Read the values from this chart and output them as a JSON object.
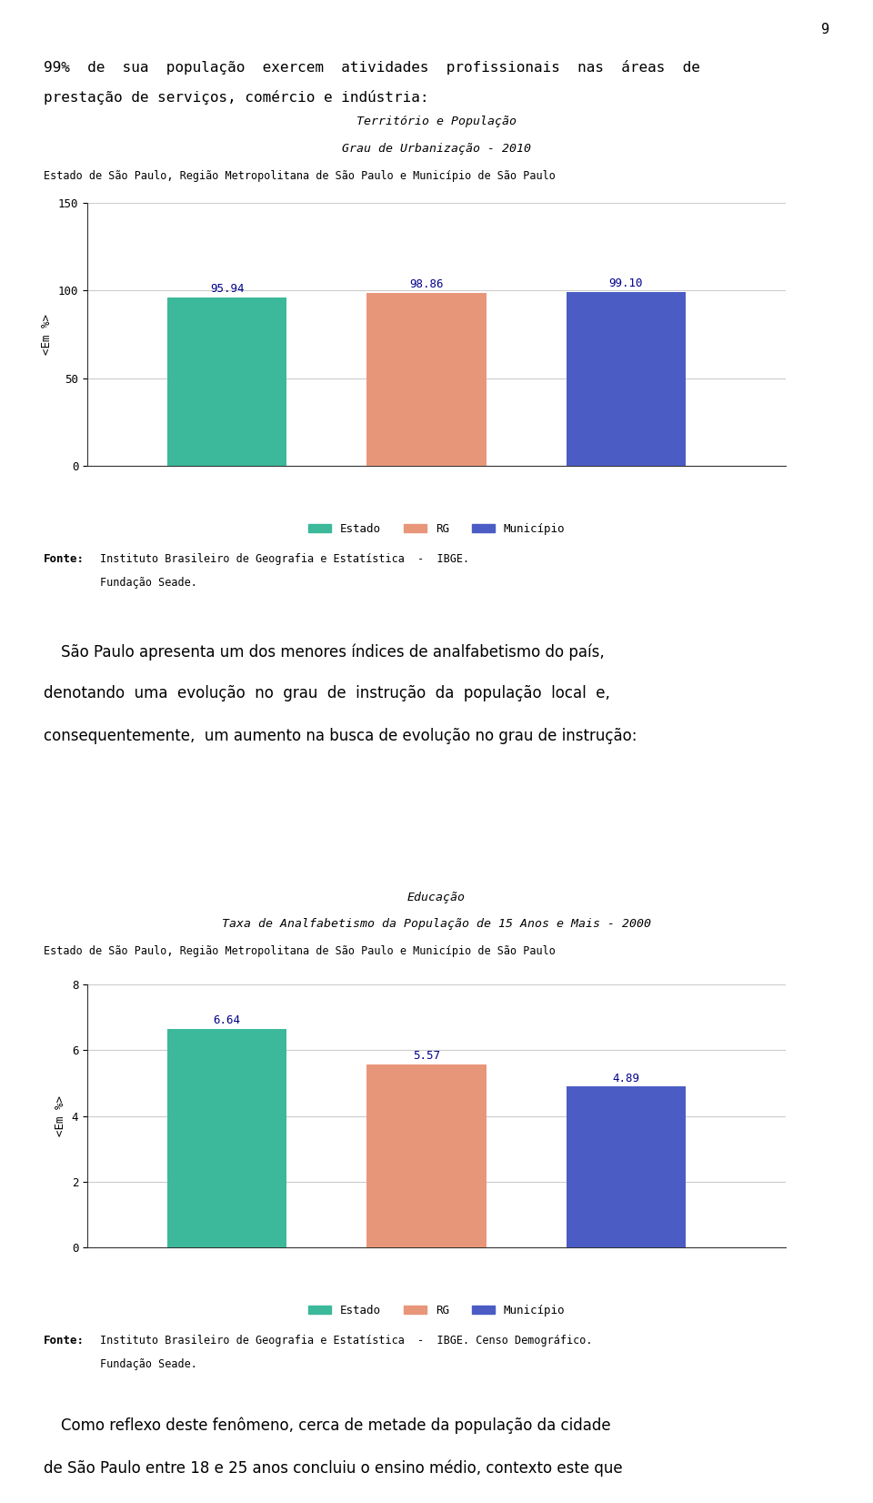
{
  "page_number": "9",
  "page_bg": "#ffffff",
  "text_color": "#000000",
  "para1_line1": "99%  de  sua  população  exercem  atividades  profissionais  nas  áreas  de",
  "para1_line2": "prestação de serviços, comércio e indústria:",
  "chart1": {
    "title_line1": "Território e População",
    "title_line2": "Grau de Urbanização - 2010",
    "subtitle": "Estado de São Paulo, Região Metropolitana de São Paulo e Município de São Paulo",
    "categories": [
      "Estado",
      "RG",
      "Município"
    ],
    "values": [
      95.94,
      98.86,
      99.1
    ],
    "bar_colors": [
      "#3cb89a",
      "#e8967a",
      "#4b5cc4"
    ],
    "ylabel": "<Em %>",
    "ylim": [
      0,
      150
    ],
    "yticks": [
      0,
      50,
      100,
      150
    ],
    "value_labels": [
      "95.94",
      "98.86",
      "99.10"
    ],
    "fonte_line1": "Instituto Brasileiro de Geografia e Estatística  -  IBGE.",
    "fonte_line2": "Fundação Seade."
  },
  "para2_line1": "São Paulo apresenta um dos menores índices de analfabetismo do país,",
  "para2_line2": "denotando  uma  evolução  no  grau  de  instrução  da  população  local  e,",
  "para2_line3": "consequentemente,  um aumento na busca de evolução no grau de instrução:",
  "chart2": {
    "title_line1": "Educação",
    "title_line2": "Taxa de Analfabetismo da População de 15 Anos e Mais - 2000",
    "subtitle": "Estado de São Paulo, Região Metropolitana de São Paulo e Município de São Paulo",
    "categories": [
      "Estado",
      "RG",
      "Município"
    ],
    "values": [
      6.64,
      5.57,
      4.89
    ],
    "bar_colors": [
      "#3cb89a",
      "#e8967a",
      "#4b5cc4"
    ],
    "ylabel": "<Em %>",
    "ylim": [
      0,
      8
    ],
    "yticks": [
      0,
      2,
      4,
      6,
      8
    ],
    "value_labels": [
      "6.64",
      "5.57",
      "4.89"
    ],
    "fonte_line1": "Instituto Brasileiro de Geografia e Estatística  -  IBGE. Censo Demográfico.",
    "fonte_line2": "Fundação Seade."
  },
  "para3_line1": "Como reflexo deste fenômeno, cerca de metade da população da cidade",
  "para3_line2": "de São Paulo entre 18 e 25 anos concluiu o ensino médio, contexto este que"
}
